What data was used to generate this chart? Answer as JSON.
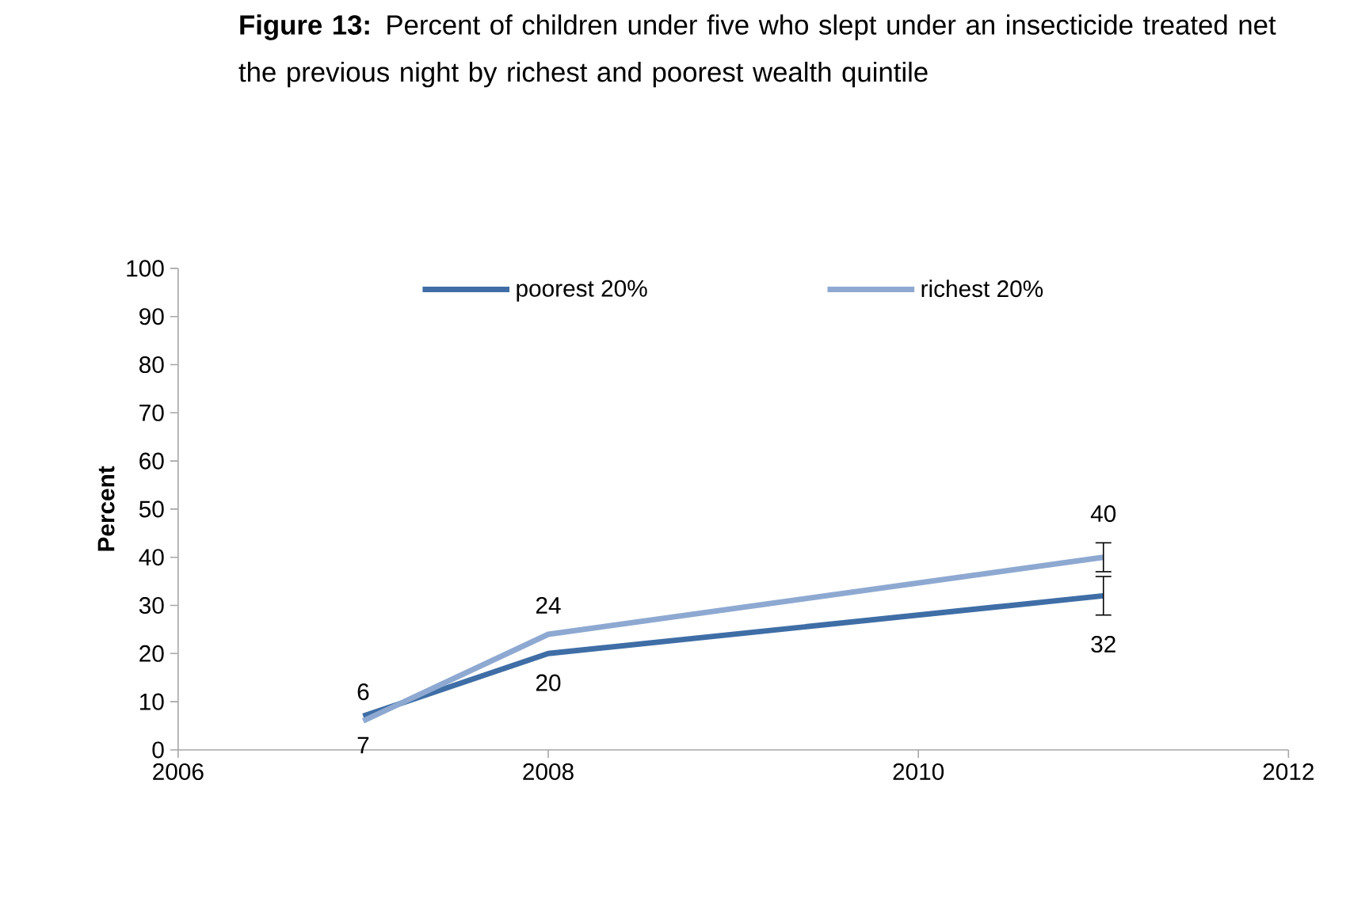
{
  "chart_data": {
    "type": "line",
    "title": "**Figure 13:** Percent of children under five who slept under an insecticide treated net the previous night by richest and poorest wealth quintile",
    "ylabel": "Percent",
    "x": [
      2007,
      2008,
      2011
    ],
    "series": [
      {
        "name": "poorest 20%",
        "color": "#3f6ea6",
        "values": [
          7,
          20,
          32
        ],
        "errors": [
          null,
          null,
          4
        ]
      },
      {
        "name": "richest 20%",
        "color": "#8ea9d1",
        "values": [
          6,
          24,
          40
        ],
        "errors": [
          null,
          null,
          3
        ]
      }
    ],
    "xlim": [
      2006,
      2012
    ],
    "xticks": [
      2006,
      2008,
      2010,
      2012
    ],
    "ylim": [
      0,
      100
    ],
    "yticks": [
      0,
      10,
      20,
      30,
      40,
      50,
      60,
      70,
      80,
      90,
      100
    ],
    "data_labels": true,
    "legend": "top",
    "grid": false,
    "marker": "none",
    "line_style": "solid"
  }
}
